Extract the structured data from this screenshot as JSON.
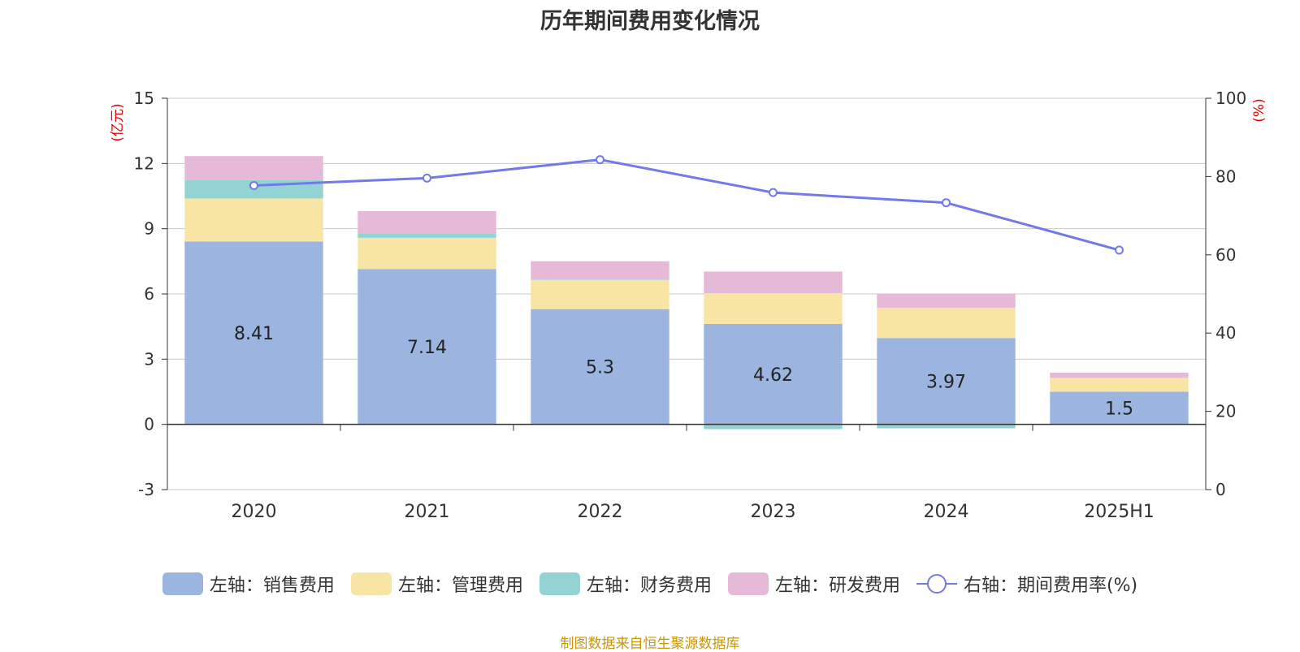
{
  "chart_data": {
    "type": "bar",
    "title": "历年期间费用变化情况",
    "categories": [
      "2020",
      "2021",
      "2022",
      "2023",
      "2024",
      "2025H1"
    ],
    "y_left": {
      "label": "(亿元)",
      "ticks": [
        "-3",
        "0",
        "3",
        "6",
        "9",
        "12",
        "15"
      ],
      "min": -3,
      "max": 15
    },
    "y_right": {
      "label": "(%)",
      "ticks": [
        "0",
        "20",
        "40",
        "60",
        "80",
        "100"
      ],
      "min": 0,
      "max": 100
    },
    "grid": true,
    "legend_position": "bottom",
    "series": [
      {
        "name": "左轴：销售费用",
        "type": "bar",
        "axis": "left",
        "color": "#9bb5e0",
        "values": [
          8.41,
          7.14,
          5.3,
          4.62,
          3.97,
          1.5
        ],
        "labels": [
          "8.41",
          "7.14",
          "5.3",
          "4.62",
          "3.97",
          "1.5"
        ]
      },
      {
        "name": "左轴：管理费用",
        "type": "bar",
        "axis": "left",
        "color": "#f8e5a6",
        "values": [
          1.98,
          1.44,
          1.34,
          1.41,
          1.39,
          0.63
        ]
      },
      {
        "name": "左轴：财务费用",
        "type": "bar",
        "axis": "left",
        "color": "#94d3d3",
        "values": [
          0.85,
          0.2,
          0.02,
          -0.22,
          -0.18,
          0.01
        ]
      },
      {
        "name": "左轴：研发费用",
        "type": "bar",
        "axis": "left",
        "color": "#e6b9d8",
        "values": [
          1.1,
          1.03,
          0.84,
          1.0,
          0.66,
          0.24
        ]
      },
      {
        "name": "右轴：期间费用率(%)",
        "type": "line",
        "axis": "right",
        "color": "#7479e8",
        "values": [
          77.7,
          79.6,
          84.3,
          75.9,
          73.3,
          61.2
        ]
      }
    ]
  },
  "source": "制图数据来自恒生聚源数据库"
}
